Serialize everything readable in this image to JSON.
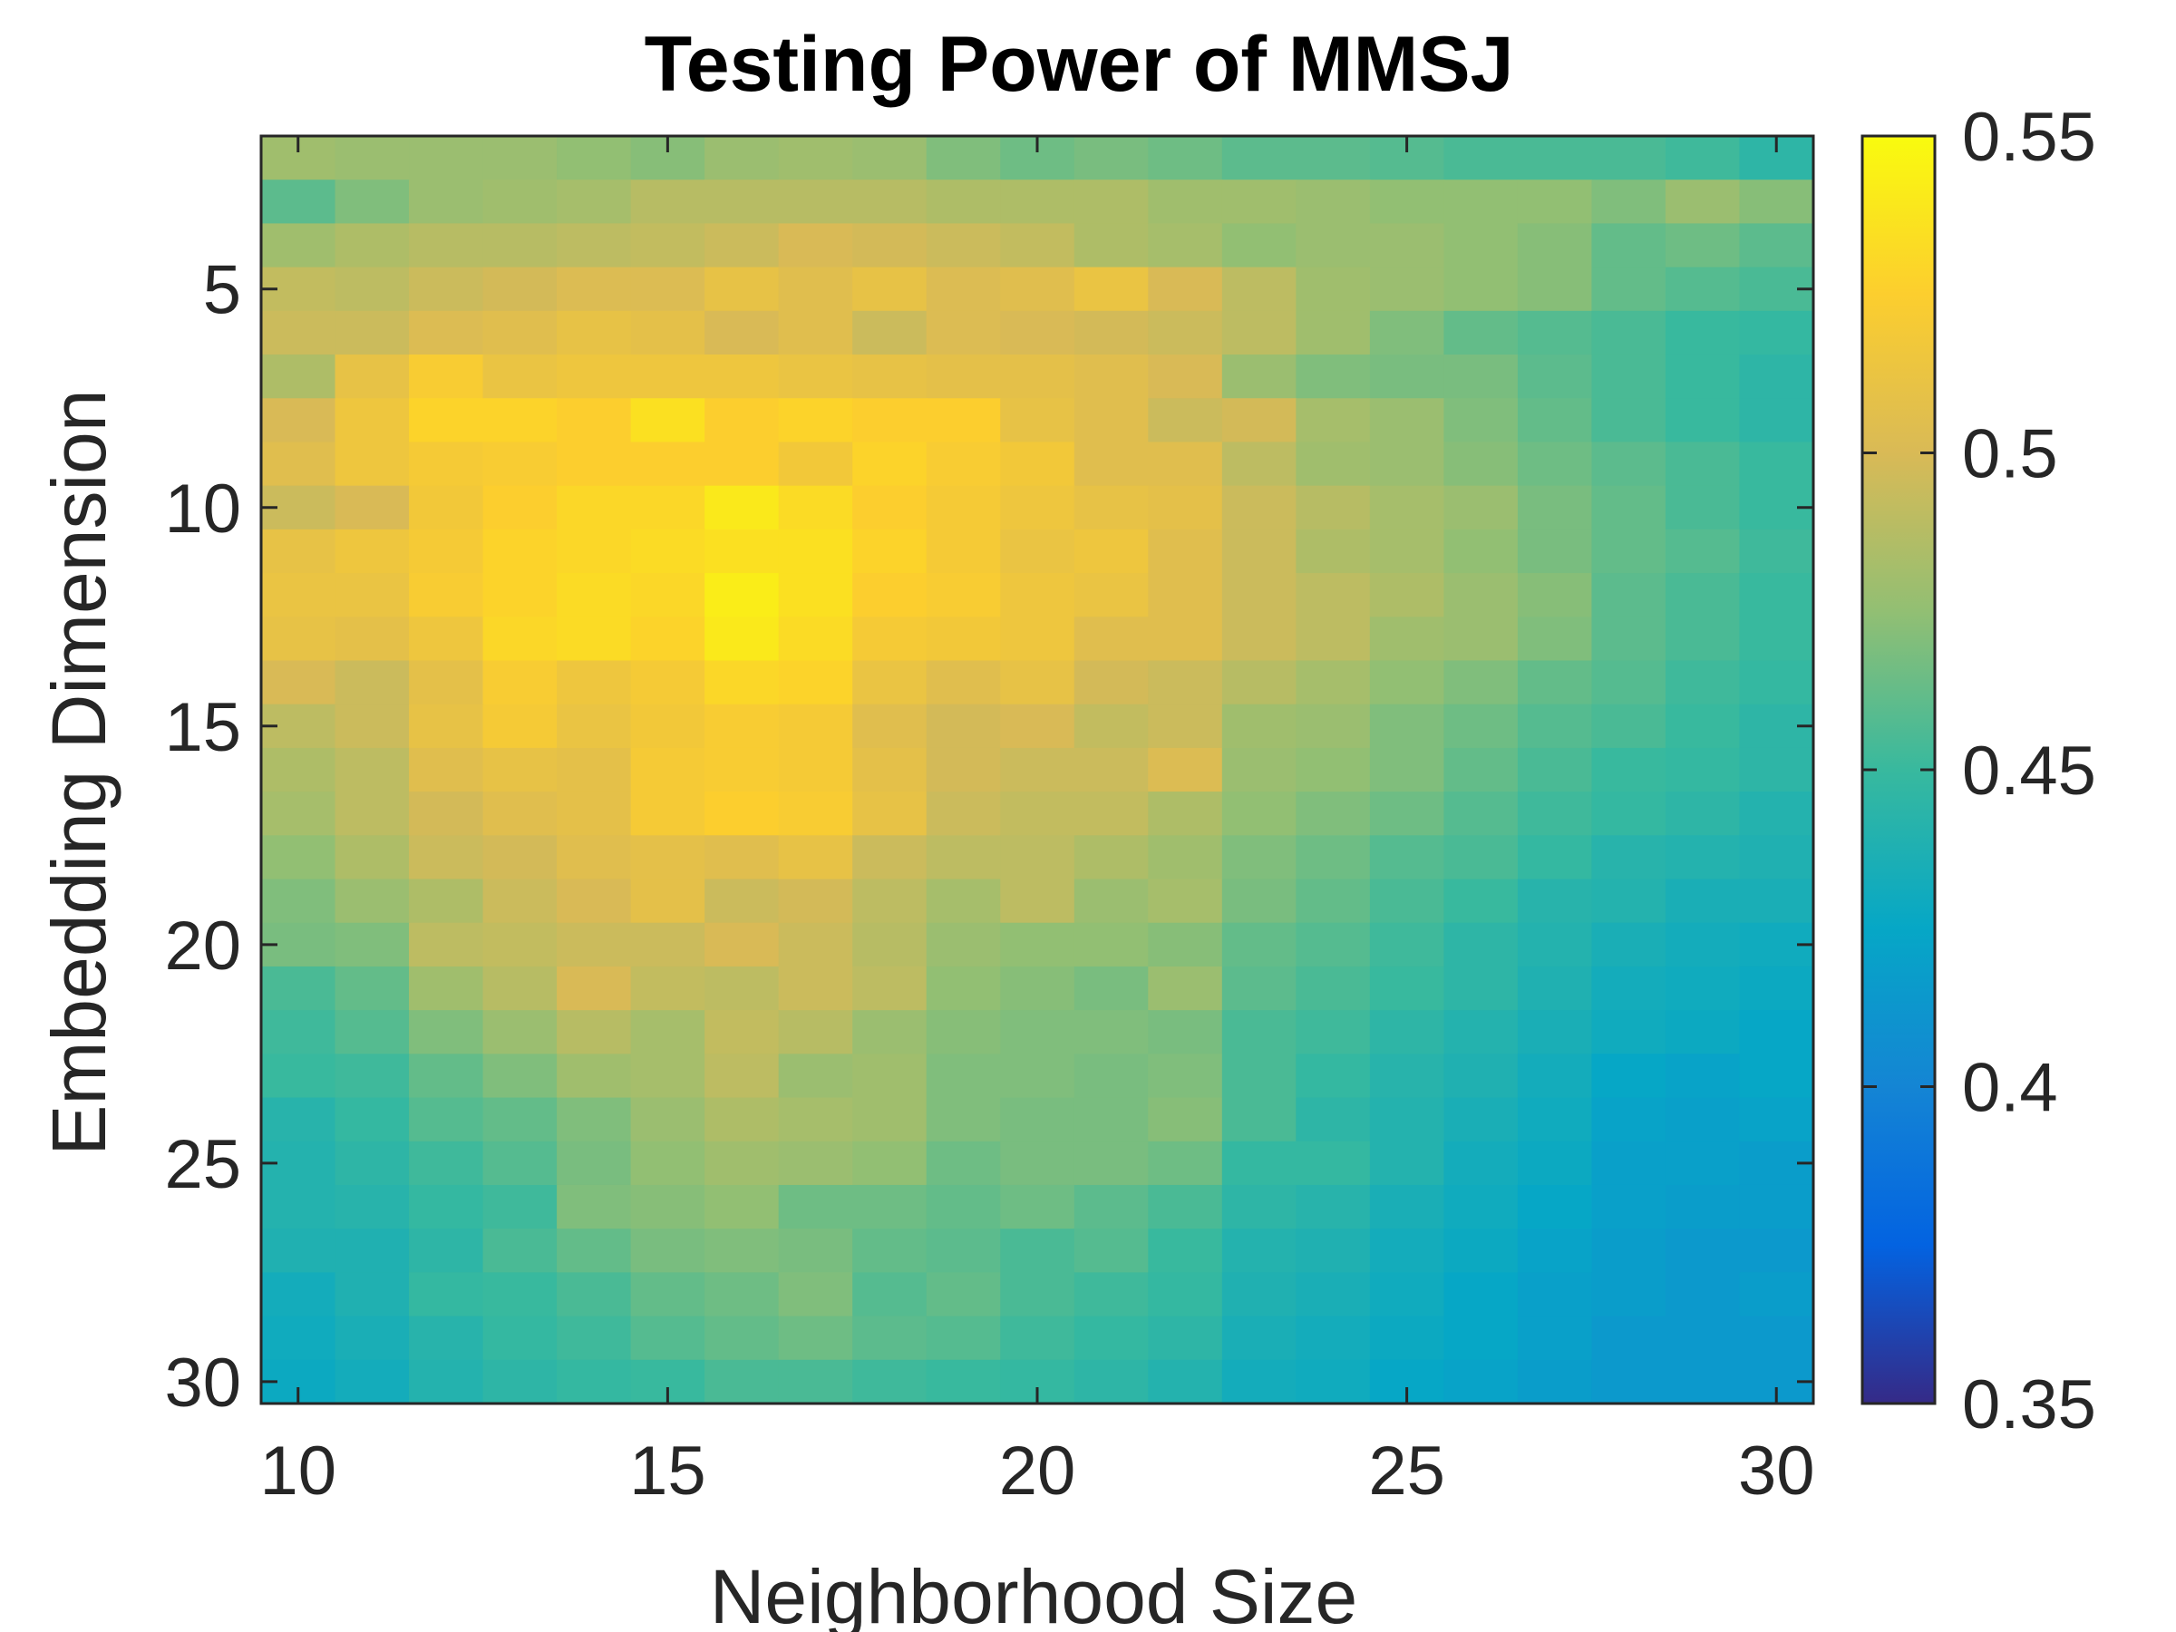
{
  "chart_data": {
    "type": "heatmap",
    "title": "Testing Power of MMSJ",
    "xlabel": "Neighborhood Size",
    "ylabel": "Embedding Dimension",
    "x_range": [
      10,
      30
    ],
    "y_range": [
      2,
      30
    ],
    "y_axis_reversed": true,
    "xticks": [
      10,
      15,
      20,
      25,
      30
    ],
    "xtick_labels": [
      "10",
      "15",
      "20",
      "25",
      "30"
    ],
    "yticks": [
      5,
      10,
      15,
      20,
      25,
      30
    ],
    "ytick_labels": [
      "5",
      "10",
      "15",
      "20",
      "25",
      "30"
    ],
    "colorbar": {
      "colormap": "parula",
      "range": [
        0.35,
        0.55
      ],
      "ticks": [
        0.35,
        0.4,
        0.45,
        0.5,
        0.55
      ],
      "tick_labels": [
        "0.35",
        "0.4",
        "0.45",
        "0.5",
        "0.55"
      ],
      "stops": [
        "#352a87",
        "#0363e1",
        "#1485d4",
        "#06a7c6",
        "#38b99e",
        "#92bf73",
        "#d9ba56",
        "#fcce2e",
        "#f9fb0e"
      ]
    },
    "x": [
      10,
      11,
      12,
      13,
      14,
      15,
      16,
      17,
      18,
      19,
      20,
      21,
      22,
      23,
      24,
      25,
      26,
      27,
      28,
      29,
      30
    ],
    "y": [
      2,
      3,
      4,
      5,
      6,
      7,
      8,
      9,
      10,
      11,
      12,
      13,
      14,
      15,
      16,
      17,
      18,
      19,
      20,
      21,
      22,
      23,
      24,
      25,
      26,
      27,
      28,
      29,
      30
    ],
    "values": [
      [
        0.48,
        0.478,
        0.478,
        0.478,
        0.475,
        0.472,
        0.478,
        0.48,
        0.478,
        0.47,
        0.465,
        0.468,
        0.465,
        0.46,
        0.46,
        0.458,
        0.455,
        0.455,
        0.455,
        0.452,
        0.445
      ],
      [
        0.46,
        0.47,
        0.478,
        0.48,
        0.482,
        0.488,
        0.488,
        0.488,
        0.488,
        0.485,
        0.485,
        0.485,
        0.48,
        0.48,
        0.478,
        0.475,
        0.475,
        0.475,
        0.47,
        0.478,
        0.472
      ],
      [
        0.48,
        0.485,
        0.488,
        0.488,
        0.49,
        0.492,
        0.495,
        0.5,
        0.498,
        0.495,
        0.492,
        0.485,
        0.482,
        0.475,
        0.478,
        0.478,
        0.475,
        0.472,
        0.462,
        0.465,
        0.46
      ],
      [
        0.492,
        0.49,
        0.495,
        0.498,
        0.502,
        0.502,
        0.51,
        0.505,
        0.51,
        0.502,
        0.505,
        0.512,
        0.5,
        0.49,
        0.48,
        0.478,
        0.475,
        0.472,
        0.462,
        0.458,
        0.455
      ],
      [
        0.495,
        0.495,
        0.502,
        0.505,
        0.51,
        0.508,
        0.5,
        0.505,
        0.495,
        0.502,
        0.5,
        0.498,
        0.495,
        0.49,
        0.48,
        0.47,
        0.462,
        0.458,
        0.455,
        0.45,
        0.448
      ],
      [
        0.485,
        0.51,
        0.522,
        0.512,
        0.515,
        0.515,
        0.515,
        0.512,
        0.51,
        0.508,
        0.508,
        0.505,
        0.5,
        0.478,
        0.47,
        0.468,
        0.468,
        0.46,
        0.455,
        0.45,
        0.445
      ],
      [
        0.5,
        0.515,
        0.528,
        0.528,
        0.525,
        0.535,
        0.525,
        0.528,
        0.525,
        0.525,
        0.51,
        0.505,
        0.495,
        0.498,
        0.482,
        0.478,
        0.47,
        0.462,
        0.455,
        0.45,
        0.445
      ],
      [
        0.505,
        0.515,
        0.52,
        0.522,
        0.525,
        0.525,
        0.525,
        0.518,
        0.528,
        0.522,
        0.518,
        0.505,
        0.505,
        0.49,
        0.48,
        0.478,
        0.472,
        0.465,
        0.46,
        0.455,
        0.45
      ],
      [
        0.495,
        0.5,
        0.518,
        0.525,
        0.53,
        0.53,
        0.54,
        0.532,
        0.525,
        0.52,
        0.515,
        0.51,
        0.508,
        0.495,
        0.488,
        0.482,
        0.478,
        0.468,
        0.462,
        0.455,
        0.45
      ],
      [
        0.51,
        0.515,
        0.52,
        0.528,
        0.53,
        0.532,
        0.535,
        0.535,
        0.528,
        0.52,
        0.512,
        0.515,
        0.505,
        0.495,
        0.485,
        0.482,
        0.475,
        0.468,
        0.462,
        0.458,
        0.452
      ],
      [
        0.512,
        0.512,
        0.522,
        0.528,
        0.532,
        0.53,
        0.542,
        0.535,
        0.525,
        0.522,
        0.515,
        0.512,
        0.505,
        0.495,
        0.49,
        0.485,
        0.478,
        0.472,
        0.46,
        0.455,
        0.45
      ],
      [
        0.51,
        0.508,
        0.515,
        0.53,
        0.532,
        0.528,
        0.54,
        0.532,
        0.52,
        0.518,
        0.515,
        0.505,
        0.505,
        0.495,
        0.49,
        0.48,
        0.478,
        0.47,
        0.46,
        0.455,
        0.45
      ],
      [
        0.5,
        0.495,
        0.508,
        0.522,
        0.515,
        0.52,
        0.53,
        0.528,
        0.512,
        0.505,
        0.51,
        0.498,
        0.495,
        0.488,
        0.482,
        0.475,
        0.47,
        0.462,
        0.458,
        0.452,
        0.448
      ],
      [
        0.49,
        0.495,
        0.51,
        0.52,
        0.512,
        0.518,
        0.522,
        0.52,
        0.505,
        0.498,
        0.5,
        0.492,
        0.495,
        0.48,
        0.478,
        0.47,
        0.465,
        0.458,
        0.455,
        0.45,
        0.445
      ],
      [
        0.485,
        0.49,
        0.505,
        0.51,
        0.508,
        0.52,
        0.522,
        0.52,
        0.508,
        0.498,
        0.495,
        0.495,
        0.502,
        0.478,
        0.475,
        0.47,
        0.462,
        0.455,
        0.45,
        0.448,
        0.445
      ],
      [
        0.482,
        0.49,
        0.498,
        0.505,
        0.508,
        0.52,
        0.525,
        0.522,
        0.51,
        0.495,
        0.492,
        0.492,
        0.485,
        0.475,
        0.47,
        0.465,
        0.458,
        0.452,
        0.448,
        0.445,
        0.44
      ],
      [
        0.475,
        0.485,
        0.495,
        0.498,
        0.505,
        0.508,
        0.505,
        0.51,
        0.495,
        0.49,
        0.49,
        0.485,
        0.48,
        0.47,
        0.465,
        0.458,
        0.455,
        0.448,
        0.442,
        0.44,
        0.438
      ],
      [
        0.47,
        0.478,
        0.485,
        0.495,
        0.5,
        0.508,
        0.495,
        0.498,
        0.49,
        0.482,
        0.49,
        0.478,
        0.482,
        0.468,
        0.462,
        0.455,
        0.45,
        0.442,
        0.44,
        0.435,
        0.435
      ],
      [
        0.468,
        0.47,
        0.49,
        0.492,
        0.495,
        0.495,
        0.5,
        0.495,
        0.488,
        0.478,
        0.475,
        0.475,
        0.472,
        0.462,
        0.458,
        0.452,
        0.445,
        0.44,
        0.435,
        0.432,
        0.43
      ],
      [
        0.455,
        0.462,
        0.48,
        0.488,
        0.5,
        0.492,
        0.49,
        0.495,
        0.49,
        0.475,
        0.472,
        0.468,
        0.478,
        0.46,
        0.455,
        0.45,
        0.445,
        0.438,
        0.432,
        0.43,
        0.428
      ],
      [
        0.452,
        0.458,
        0.47,
        0.478,
        0.488,
        0.482,
        0.492,
        0.488,
        0.478,
        0.472,
        0.47,
        0.47,
        0.468,
        0.455,
        0.452,
        0.445,
        0.44,
        0.435,
        0.43,
        0.428,
        0.425
      ],
      [
        0.45,
        0.452,
        0.462,
        0.47,
        0.48,
        0.482,
        0.49,
        0.478,
        0.48,
        0.47,
        0.47,
        0.468,
        0.47,
        0.455,
        0.448,
        0.442,
        0.438,
        0.432,
        0.425,
        0.422,
        0.425
      ],
      [
        0.442,
        0.448,
        0.458,
        0.462,
        0.47,
        0.478,
        0.485,
        0.482,
        0.48,
        0.47,
        0.468,
        0.468,
        0.472,
        0.455,
        0.445,
        0.44,
        0.435,
        0.43,
        0.422,
        0.42,
        0.422
      ],
      [
        0.44,
        0.445,
        0.452,
        0.458,
        0.468,
        0.475,
        0.48,
        0.478,
        0.475,
        0.465,
        0.468,
        0.468,
        0.465,
        0.448,
        0.448,
        0.44,
        0.432,
        0.428,
        0.42,
        0.42,
        0.418
      ],
      [
        0.44,
        0.442,
        0.448,
        0.452,
        0.47,
        0.472,
        0.475,
        0.465,
        0.465,
        0.462,
        0.465,
        0.46,
        0.455,
        0.445,
        0.442,
        0.435,
        0.43,
        0.425,
        0.42,
        0.418,
        0.418
      ],
      [
        0.438,
        0.438,
        0.445,
        0.455,
        0.462,
        0.468,
        0.47,
        0.468,
        0.462,
        0.46,
        0.455,
        0.458,
        0.45,
        0.44,
        0.438,
        0.432,
        0.428,
        0.422,
        0.418,
        0.415,
        0.415
      ],
      [
        0.432,
        0.438,
        0.448,
        0.45,
        0.455,
        0.462,
        0.465,
        0.47,
        0.458,
        0.462,
        0.455,
        0.452,
        0.448,
        0.438,
        0.435,
        0.43,
        0.425,
        0.42,
        0.418,
        0.415,
        0.418
      ],
      [
        0.43,
        0.435,
        0.442,
        0.448,
        0.452,
        0.458,
        0.462,
        0.465,
        0.46,
        0.458,
        0.452,
        0.448,
        0.445,
        0.435,
        0.432,
        0.428,
        0.425,
        0.42,
        0.415,
        0.415,
        0.415
      ],
      [
        0.428,
        0.432,
        0.44,
        0.445,
        0.448,
        0.45,
        0.455,
        0.455,
        0.452,
        0.45,
        0.448,
        0.445,
        0.44,
        0.432,
        0.43,
        0.425,
        0.422,
        0.418,
        0.415,
        0.415,
        0.415
      ]
    ]
  }
}
